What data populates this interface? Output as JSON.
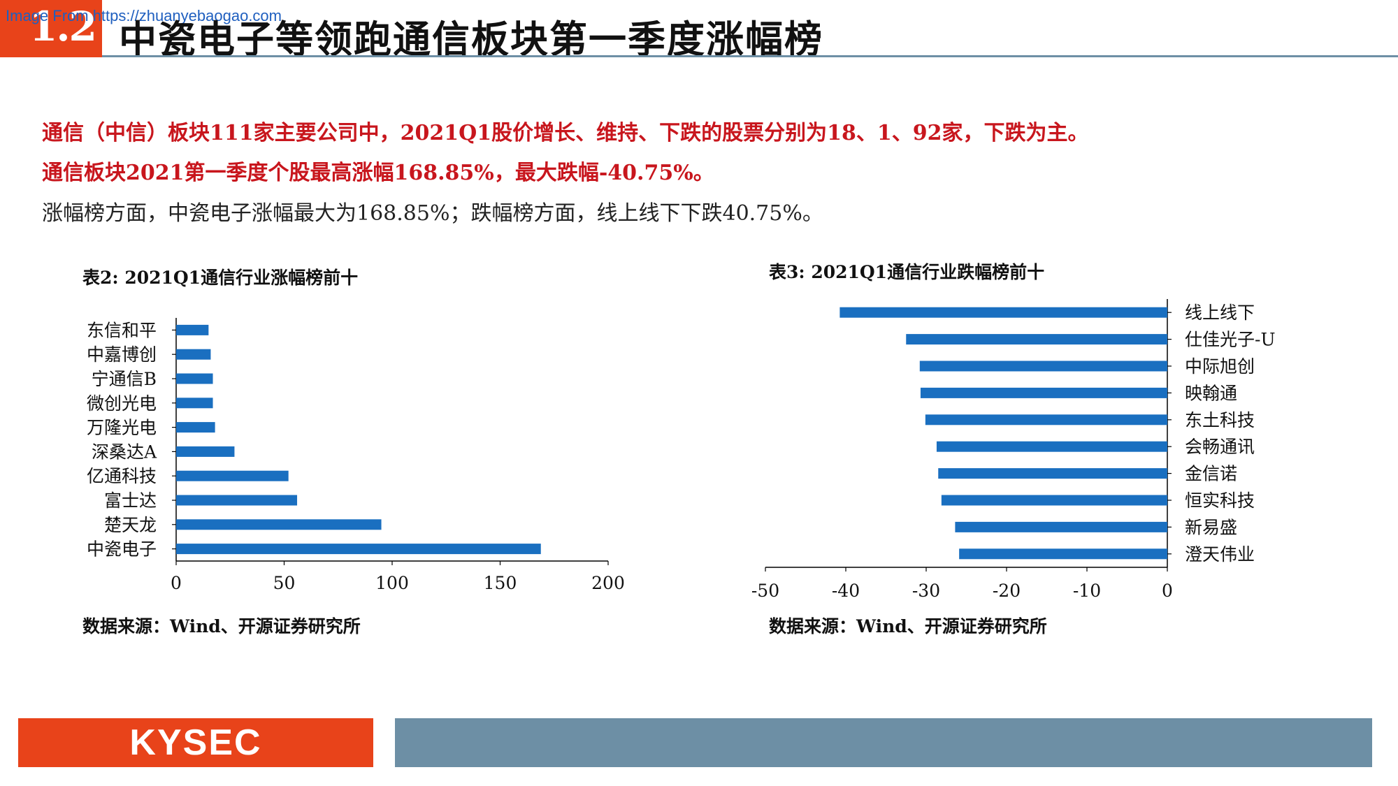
{
  "header": {
    "section_number": "1.2",
    "title": "中瓷电子等领跑通信板块第一季度涨幅榜",
    "watermark": "Image From https://zhuanyebaogao.com"
  },
  "text": {
    "lead_line_1": "通信（中信）板块111家主要公司中，2021Q1股价增长、维持、下跌的股票分别为18、1、92家，下跌为主。",
    "lead_line_2": "通信板块2021第一季度个股最高涨幅168.85%，最大跌幅-40.75%。",
    "body": "涨幅榜方面，中瓷电子涨幅最大为168.85%；跌幅榜方面，线上线下下跌40.75%。"
  },
  "colors": {
    "accent": "#e8431a",
    "lead_text": "#c8161d",
    "bar": "#1a6fc0",
    "footer_bar": "#6d8fa5"
  },
  "chart_data": [
    {
      "type": "bar",
      "orientation": "horizontal",
      "title": "表2:  2021Q1通信行业涨幅榜前十",
      "categories": [
        "东信和平",
        "中嘉博创",
        "宁通信B",
        "微创光电",
        "万隆光电",
        "深桑达A",
        "亿通科技",
        "富士达",
        "楚天龙",
        "中瓷电子"
      ],
      "values": [
        15,
        16,
        17,
        17,
        18,
        27,
        52,
        56,
        95,
        168.85
      ],
      "xlim": [
        0,
        200
      ],
      "xticks": [
        "0",
        "50",
        "100",
        "150",
        "200"
      ],
      "xlabel": "",
      "ylabel": "",
      "grid": false,
      "source": "数据来源：Wind、开源证券研究所"
    },
    {
      "type": "bar",
      "orientation": "horizontal",
      "title": "表3:  2021Q1通信行业跌幅榜前十",
      "categories": [
        "线上线下",
        "仕佳光子-U",
        "中际旭创",
        "映翰通",
        "东土科技",
        "会畅通讯",
        "金信诺",
        "恒实科技",
        "新易盛",
        "澄天伟业"
      ],
      "values": [
        -40.75,
        -32.5,
        -30.8,
        -30.7,
        -30.1,
        -28.7,
        -28.5,
        -28.1,
        -26.4,
        -25.9
      ],
      "xlim": [
        -50,
        0
      ],
      "xticks": [
        "-50",
        "-40",
        "-30",
        "-20",
        "-10",
        "0"
      ],
      "xlabel": "",
      "ylabel": "",
      "grid": false,
      "source": "数据来源：Wind、开源证券研究所"
    }
  ],
  "footer": {
    "logo": "KYSEC"
  }
}
